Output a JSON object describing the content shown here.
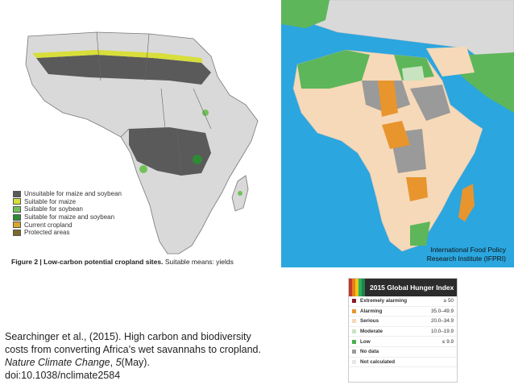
{
  "left_map": {
    "legend": [
      {
        "label": "Unsuitable for maize and soybean",
        "color": "#5a5a5a"
      },
      {
        "label": "Suitable for maize",
        "color": "#d8de3a"
      },
      {
        "label": "Suitable for soybean",
        "color": "#72c25a"
      },
      {
        "label": "Suitable for maize and soybean",
        "color": "#2f8a35"
      },
      {
        "label": "Current cropland",
        "color": "#d9a728"
      },
      {
        "label": "Protected areas",
        "color": "#7a6a2a"
      }
    ],
    "caption_bold": "Figure 2 | Low-carbon potential cropland sites.",
    "caption_rest": " Suitable means: yields"
  },
  "right_map": {
    "credit_line1": "International Food Policy",
    "credit_line2": "Research Institute (IFPRI)"
  },
  "citation": {
    "line1": "Searchinger et al., (2015). High carbon and biodiversity",
    "line2": "costs from converting Africa’s wet savannahs to cropland.",
    "journal": "Nature Climate Change",
    "volume_sep": ", ",
    "volume": "5",
    "issue": "(May).",
    "doi": "doi:10.1038/nclimate2584"
  },
  "ghi_legend": {
    "title": "2015 Global Hunger Index",
    "stripe_colors": [
      "#c0392b",
      "#e67e22",
      "#f1c40f",
      "#27ae60",
      "#1e8449"
    ],
    "rows": [
      {
        "label": "Extremely alarming",
        "range": "≥ 50",
        "color": "#8b1a2b"
      },
      {
        "label": "Alarming",
        "range": "35.0–49.9",
        "color": "#e8952e"
      },
      {
        "label": "Serious",
        "range": "20.0–34.9",
        "color": "#f6d9b8"
      },
      {
        "label": "Moderate",
        "range": "10.0–19.9",
        "color": "#c9e3c0"
      },
      {
        "label": "Low",
        "range": "≤ 9.9",
        "color": "#4caf50"
      },
      {
        "label": "No data",
        "range": "",
        "color": "#9a9a9a"
      },
      {
        "label": "Not calculated",
        "range": "",
        "color": "#e6e6e6"
      }
    ]
  }
}
